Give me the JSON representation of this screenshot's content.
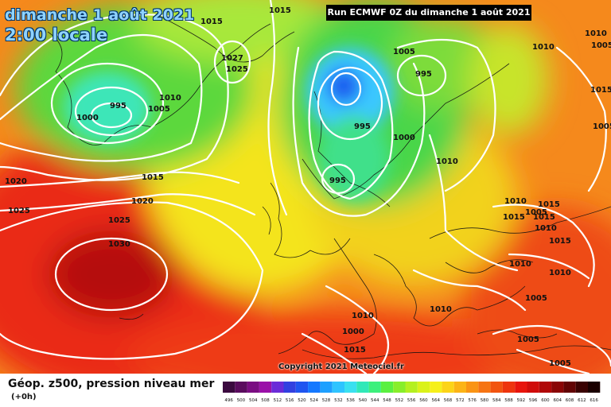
{
  "header": {
    "date_line": "dimanche 1 août 2021",
    "time_line": "2:00 locale",
    "run_info": "Run ECMWF 0Z du dimanche 1 août 2021"
  },
  "footer": {
    "copyright": "Copyright 2021 Meteociel.fr",
    "legend_title": "Géop. z500, pression niveau mer",
    "legend_subtitle": "(+0h)"
  },
  "colorbar": {
    "labels": [
      "496",
      "500",
      "504",
      "508",
      "512",
      "516",
      "520",
      "524",
      "528",
      "532",
      "536",
      "540",
      "544",
      "548",
      "552",
      "556",
      "560",
      "564",
      "568",
      "572",
      "576",
      "580",
      "584",
      "588",
      "592",
      "596",
      "600",
      "604",
      "608",
      "612",
      "616"
    ],
    "colors": [
      "#3b0a3f",
      "#5a0c5e",
      "#7a0d82",
      "#9a10a8",
      "#6a2bd8",
      "#3240e0",
      "#1f55f0",
      "#1478ff",
      "#1ea0ff",
      "#2ec4ff",
      "#3ae0f0",
      "#30e8b8",
      "#3cf07c",
      "#5af040",
      "#88ee2a",
      "#b4f020",
      "#daf21a",
      "#f6f01a",
      "#fcd418",
      "#fcb416",
      "#fa9414",
      "#f67412",
      "#f25410",
      "#ee340e",
      "#e8140c",
      "#d00c0a",
      "#b00808",
      "#8a0606",
      "#620404",
      "#3a0202",
      "#1a0000"
    ]
  },
  "pressure_labels": [
    "1015",
    "1015",
    "1027",
    "1025",
    "995",
    "1000",
    "1010",
    "1005",
    "1015",
    "1020",
    "1020",
    "1025",
    "1025",
    "1030",
    "1005",
    "995",
    "995",
    "1000",
    "995",
    "1010",
    "1010",
    "1010",
    "1015",
    "1005",
    "1010",
    "1015",
    "1010",
    "1010",
    "1005",
    "1010",
    "1010",
    "1000",
    "1005",
    "1005",
    "1015",
    "1010",
    "1005",
    "1005",
    "1015",
    "1015",
    "1015"
  ]
}
